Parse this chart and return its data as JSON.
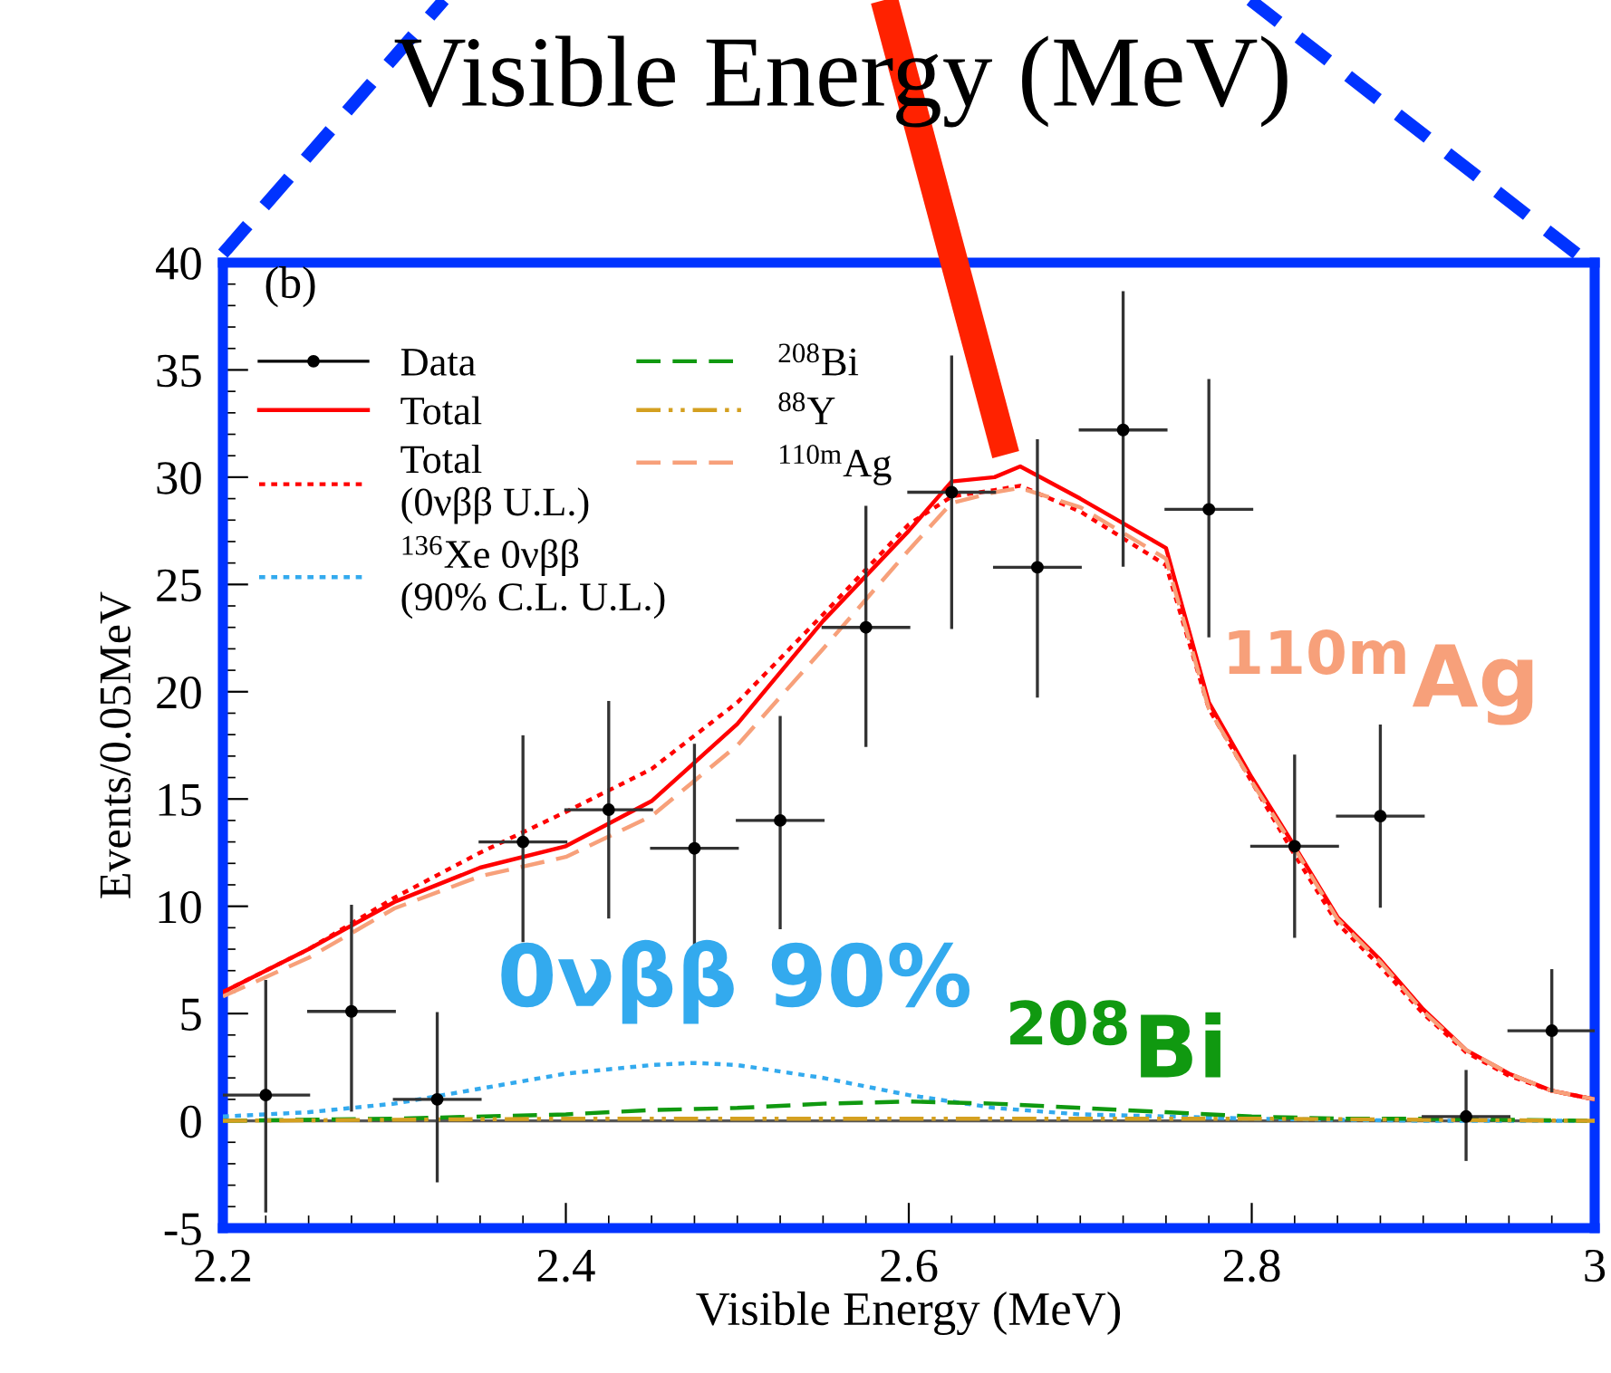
{
  "chart_data": {
    "type": "line",
    "title": "Visible Energy (MeV)",
    "xlabel": "Visible Energy (MeV)",
    "ylabel": "Events/0.05MeV",
    "xlim": [
      2.2,
      3.0
    ],
    "xticks": [
      2.2,
      2.4,
      2.6,
      2.8,
      {
        "value": 3.0,
        "label": "3"
      }
    ],
    "ylim": [
      -5,
      40
    ],
    "yticks": [
      -5,
      0,
      5,
      10,
      15,
      20,
      25,
      30,
      35,
      40
    ],
    "legend": "top left",
    "ref_lines": [
      {
        "axis": "y",
        "value": 0,
        "color": "#555555"
      }
    ],
    "annotations": [
      "(b)",
      "$^{110m}$Ag",
      "0νββ 90%",
      "$^{208}$Bi"
    ],
    "series": [
      {
        "name": "Data",
        "type": "scatter",
        "color": "#000000",
        "marker": "circle",
        "x": [
          2.225,
          2.275,
          2.325,
          2.375,
          2.425,
          2.475,
          2.525,
          2.575,
          2.625,
          2.675,
          2.725,
          2.775,
          2.825,
          2.875,
          2.925,
          2.975
        ],
        "values": [
          1.2,
          5.1,
          1.0,
          13.0,
          14.5,
          12.7,
          14.0,
          23.0,
          29.3,
          25.8,
          32.2,
          28.5,
          12.8,
          14.2,
          0.2,
          4.2
        ],
        "xerrors": [
          0.025,
          0.025,
          0.025,
          0.025,
          0.025,
          0.025,
          0.025,
          0.025,
          0.025,
          0.025,
          0.025,
          0.025,
          0.025,
          0.025,
          0.025,
          0.025
        ],
        "errors": [
          [
            -4.2,
            6.5
          ],
          [
            0.5,
            10.0
          ],
          [
            -2.8,
            5.0
          ],
          [
            8.4,
            17.9
          ],
          [
            9.5,
            19.5
          ],
          [
            7.5,
            17.5
          ],
          [
            9.0,
            18.8
          ],
          [
            17.5,
            28.6
          ],
          [
            23.0,
            35.6
          ],
          [
            19.8,
            31.7
          ],
          [
            25.9,
            38.6
          ],
          [
            22.6,
            34.5
          ],
          [
            8.6,
            17.0
          ],
          [
            10.0,
            18.4
          ],
          [
            -1.8,
            2.3
          ],
          [
            1.4,
            7.0
          ]
        ]
      },
      {
        "name": "Total",
        "type": "line",
        "color": "#ff0000",
        "line_style": "solid",
        "x": [
          2.2,
          2.25,
          2.3,
          2.35,
          2.4,
          2.45,
          2.5,
          2.55,
          2.6,
          2.625,
          2.65,
          2.665,
          2.7,
          2.75,
          2.775,
          2.8,
          2.825,
          2.85,
          2.875,
          2.9,
          2.925,
          2.95,
          2.975,
          3.0
        ],
        "values": [
          6.0,
          8.0,
          10.2,
          11.8,
          12.8,
          14.9,
          18.5,
          23.3,
          27.5,
          29.8,
          30.0,
          30.5,
          29.0,
          26.7,
          19.5,
          16.0,
          12.8,
          9.5,
          7.5,
          5.2,
          3.3,
          2.2,
          1.4,
          1.0
        ]
      },
      {
        "name": "Total\n(0νββ U.L.)",
        "type": "line",
        "color": "#ff0000",
        "line_style": "dotted",
        "x": [
          2.2,
          2.25,
          2.3,
          2.35,
          2.4,
          2.45,
          2.5,
          2.55,
          2.6,
          2.625,
          2.65,
          2.665,
          2.7,
          2.75,
          2.775,
          2.8,
          2.825,
          2.85,
          2.875,
          2.9,
          2.925,
          2.95,
          2.975,
          3.0
        ],
        "values": [
          6.0,
          8.0,
          10.4,
          12.5,
          14.4,
          16.4,
          19.5,
          23.6,
          27.8,
          29.1,
          29.4,
          29.6,
          28.4,
          25.9,
          19.2,
          15.8,
          12.4,
          9.2,
          7.2,
          5.0,
          3.2,
          2.1,
          1.4,
          1.0
        ]
      },
      {
        "name": "$^{136}$Xe 0νββ\n(90% C.L. U.L.)",
        "type": "line",
        "color": "#33aaee",
        "line_style": "dotted",
        "x": [
          2.2,
          2.25,
          2.3,
          2.35,
          2.4,
          2.45,
          2.475,
          2.5,
          2.55,
          2.6,
          2.65,
          2.7,
          2.75,
          2.8,
          2.9,
          3.0
        ],
        "values": [
          0.2,
          0.4,
          0.8,
          1.5,
          2.2,
          2.6,
          2.7,
          2.6,
          2.0,
          1.2,
          0.6,
          0.3,
          0.2,
          0.1,
          0,
          0
        ]
      },
      {
        "name": "$^{208}$Bi",
        "type": "line",
        "color": "#109910",
        "line_style": "dashed",
        "x": [
          2.2,
          2.3,
          2.4,
          2.45,
          2.5,
          2.55,
          2.6,
          2.65,
          2.7,
          2.75,
          2.8,
          2.85,
          2.9,
          3.0
        ],
        "values": [
          0,
          0.1,
          0.3,
          0.5,
          0.6,
          0.8,
          0.9,
          0.8,
          0.6,
          0.4,
          0.2,
          0.1,
          0.1,
          0
        ]
      },
      {
        "name": "$^{88}$Y",
        "type": "line",
        "color": "#d4a020",
        "line_style": "dashdot",
        "x": [
          2.2,
          2.4,
          2.6,
          2.8,
          3.0
        ],
        "values": [
          0,
          0.1,
          0.1,
          0.1,
          0
        ]
      },
      {
        "name": "$^{110m}$Ag",
        "type": "line",
        "color": "#f7a07a",
        "line_style": "dashed",
        "x": [
          2.2,
          2.25,
          2.3,
          2.35,
          2.4,
          2.45,
          2.5,
          2.55,
          2.6,
          2.625,
          2.65,
          2.665,
          2.7,
          2.75,
          2.775,
          2.8,
          2.825,
          2.85,
          2.875,
          2.9,
          2.925,
          2.95,
          2.975,
          3.0
        ],
        "values": [
          5.8,
          7.6,
          9.9,
          11.4,
          12.3,
          14.2,
          17.5,
          22.0,
          26.6,
          28.8,
          29.3,
          29.5,
          28.6,
          26.2,
          19.2,
          15.8,
          12.7,
          9.4,
          7.4,
          5.1,
          3.3,
          2.2,
          1.4,
          1.0
        ]
      }
    ]
  }
}
